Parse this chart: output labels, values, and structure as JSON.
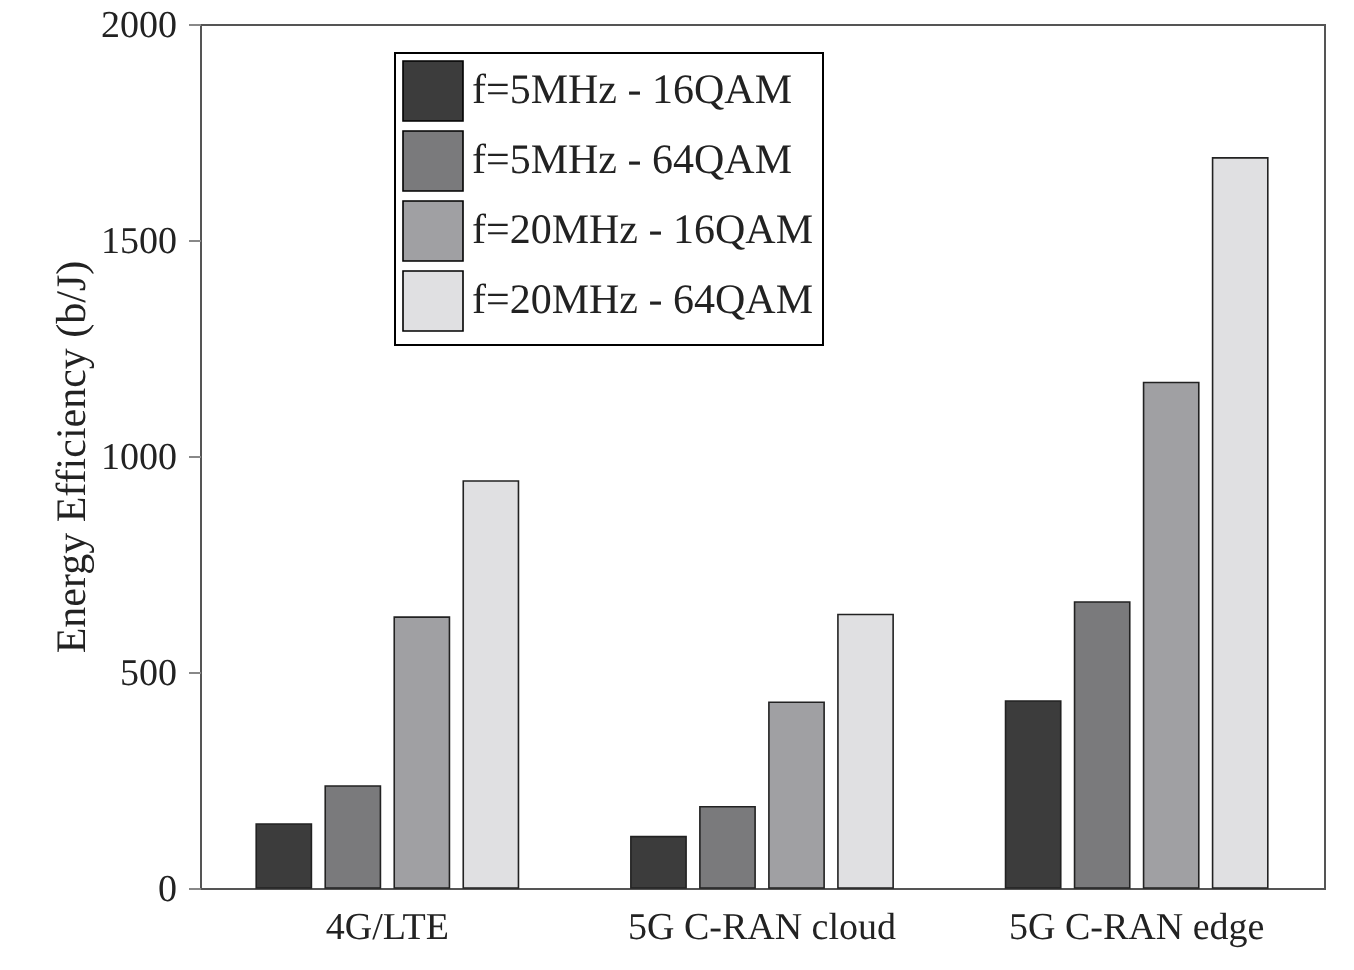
{
  "chart_data": {
    "type": "bar",
    "ylabel": "Energy Efficiency (b/J)",
    "categories": [
      "4G/LTE",
      "5G C-RAN cloud",
      "5G C-RAN edge"
    ],
    "series": [
      {
        "name": "f=5MHz - 16QAM",
        "color": "#3c3c3c",
        "values": [
          148,
          119,
          433
        ]
      },
      {
        "name": "f=5MHz - 64QAM",
        "color": "#7a7a7c",
        "values": [
          236,
          188,
          662
        ]
      },
      {
        "name": "f=20MHz - 16QAM",
        "color": "#a0a0a3",
        "values": [
          627,
          430,
          1170
        ]
      },
      {
        "name": "f=20MHz - 64QAM",
        "color": "#e0e0e2",
        "values": [
          942,
          633,
          1690
        ]
      }
    ],
    "ylim": [
      0,
      2000
    ],
    "yticks": [
      0,
      500,
      1000,
      1500,
      2000
    ],
    "grid": false,
    "legend": "top left"
  }
}
